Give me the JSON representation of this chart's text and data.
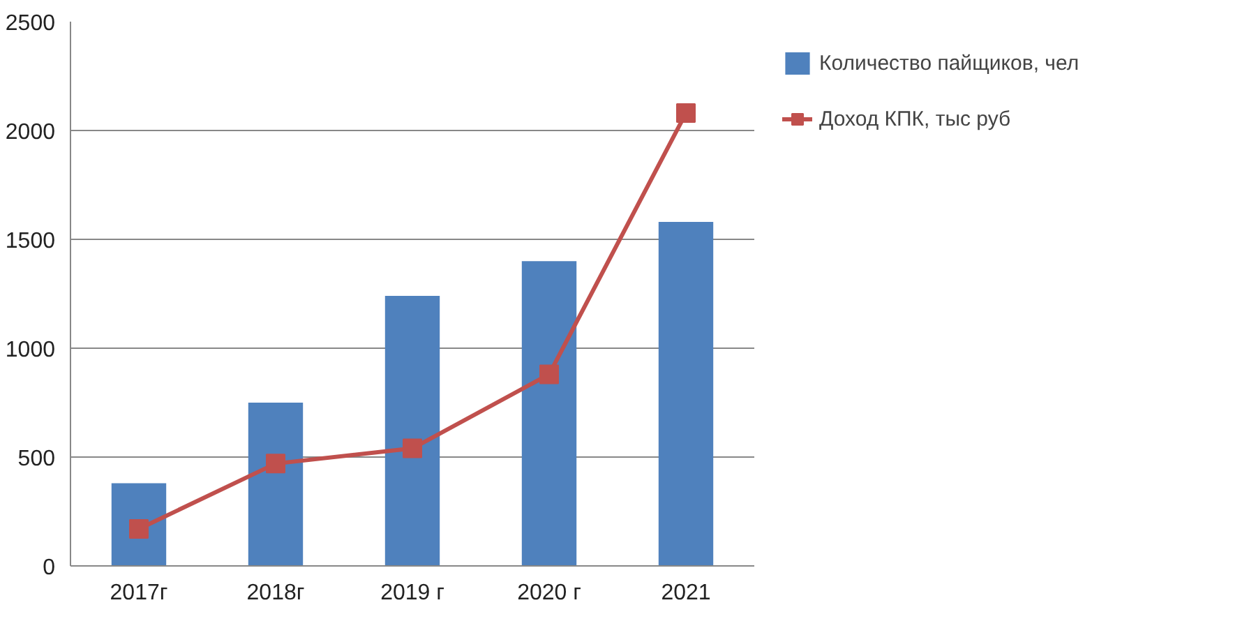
{
  "chart_data": {
    "type": "bar",
    "categories": [
      "2017г",
      "2018г",
      "2019 г",
      "2020 г",
      "2021"
    ],
    "series": [
      {
        "name": "Количество пайщиков, чел",
        "color": "#4f81bd",
        "values": [
          380,
          750,
          1240,
          1400,
          1580
        ]
      },
      {
        "name": "Доход КПК, тыс руб",
        "color": "#c0504d",
        "type": "line",
        "marker": "square",
        "values": [
          170,
          470,
          540,
          880,
          2080
        ]
      }
    ],
    "ylim": [
      0,
      2500
    ],
    "yticks": [
      0,
      500,
      1000,
      1500,
      2000,
      2500
    ],
    "grid": "y",
    "legend": "right"
  }
}
